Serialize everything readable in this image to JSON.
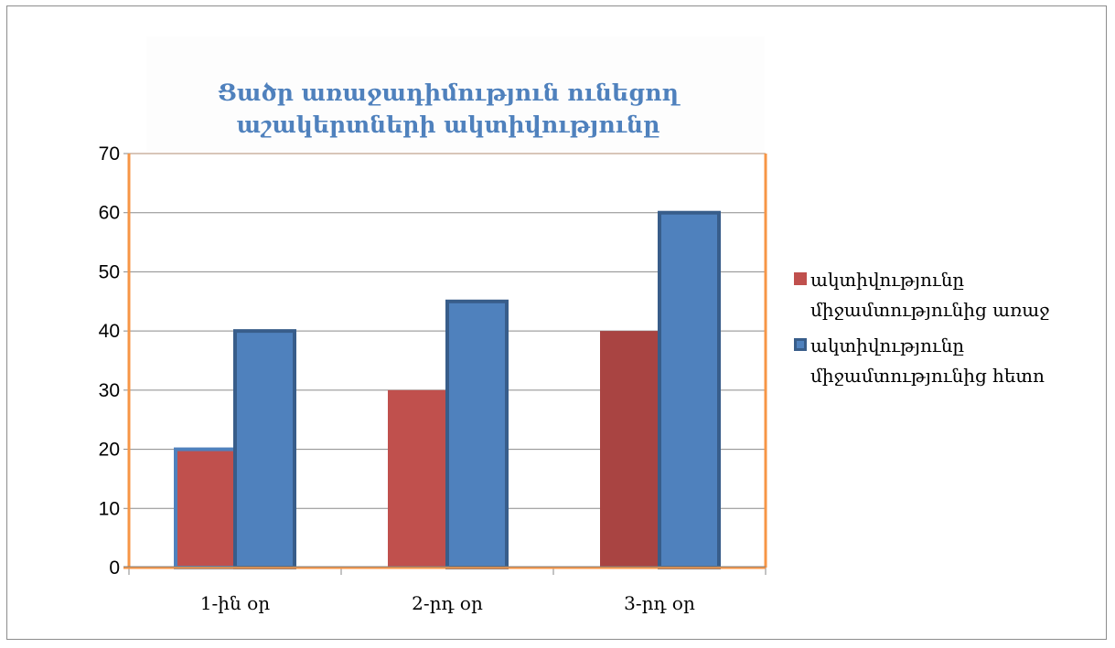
{
  "chart_data": {
    "type": "bar",
    "title": "Ցածր առաջադիմություն ունեցող աշակերտների ակտիվությունը",
    "categories": [
      "1-ին օր",
      "2-րդ օր",
      "3-րդ օր"
    ],
    "series": [
      {
        "name": "ակտիվությունը միջամտությունից առաջ",
        "values": [
          20,
          30,
          40
        ],
        "color": "#c0504d"
      },
      {
        "name": "ակտիվությունը միջամտությունից հետո",
        "values": [
          40,
          45,
          60
        ],
        "color": "#4f81bd"
      }
    ],
    "ylim": [
      0,
      70
    ],
    "yticks": [
      0,
      10,
      20,
      30,
      40,
      50,
      60,
      70
    ],
    "xlabel": "",
    "ylabel": "",
    "grid": true,
    "legend_position": "right",
    "axis_color": "#f79646",
    "highlight_border_color": "#385d8a"
  }
}
